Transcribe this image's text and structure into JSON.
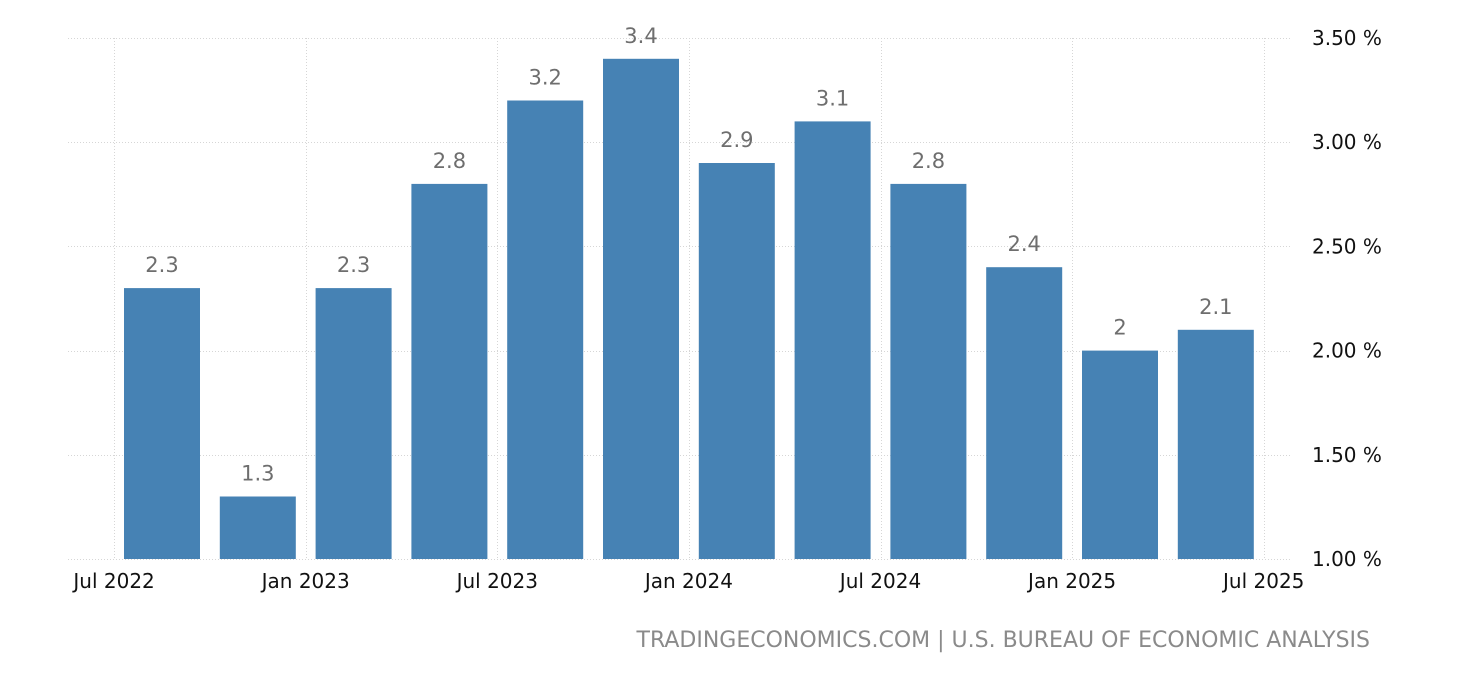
{
  "chart_data": {
    "type": "bar",
    "title": "",
    "xlabel": "",
    "ylabel": "",
    "categories": [
      "2022 Q3",
      "2022 Q4",
      "2023 Q1",
      "2023 Q2",
      "2023 Q3",
      "2023 Q4",
      "2024 Q1",
      "2024 Q2",
      "2024 Q3",
      "2024 Q4",
      "2025 Q1",
      "2025 Q2"
    ],
    "values": [
      2.3,
      1.3,
      2.3,
      2.8,
      3.2,
      3.4,
      2.9,
      3.1,
      2.8,
      2.4,
      2,
      2.1
    ],
    "value_labels": [
      "2.3",
      "1.3",
      "2.3",
      "2.8",
      "3.2",
      "3.4",
      "2.9",
      "3.1",
      "2.8",
      "2.4",
      "2",
      "2.1"
    ],
    "x_tick_labels": [
      "Jul 2022",
      "Jan 2023",
      "Jul 2023",
      "Jan 2024",
      "Jul 2024",
      "Jan 2025",
      "Jul 2025"
    ],
    "y_tick_labels": [
      "1.00 %",
      "1.50 %",
      "2.00 %",
      "2.50 %",
      "3.00 %",
      "3.50 %"
    ],
    "y_ticks": [
      1.0,
      1.5,
      2.0,
      2.5,
      3.0,
      3.5
    ],
    "ylim": [
      1.0,
      3.5
    ],
    "grid": true,
    "y_axis_position": "right",
    "bar_color": "#4682b4"
  },
  "source": "TRADINGECONOMICS.COM | U.S. BUREAU OF ECONOMIC ANALYSIS"
}
